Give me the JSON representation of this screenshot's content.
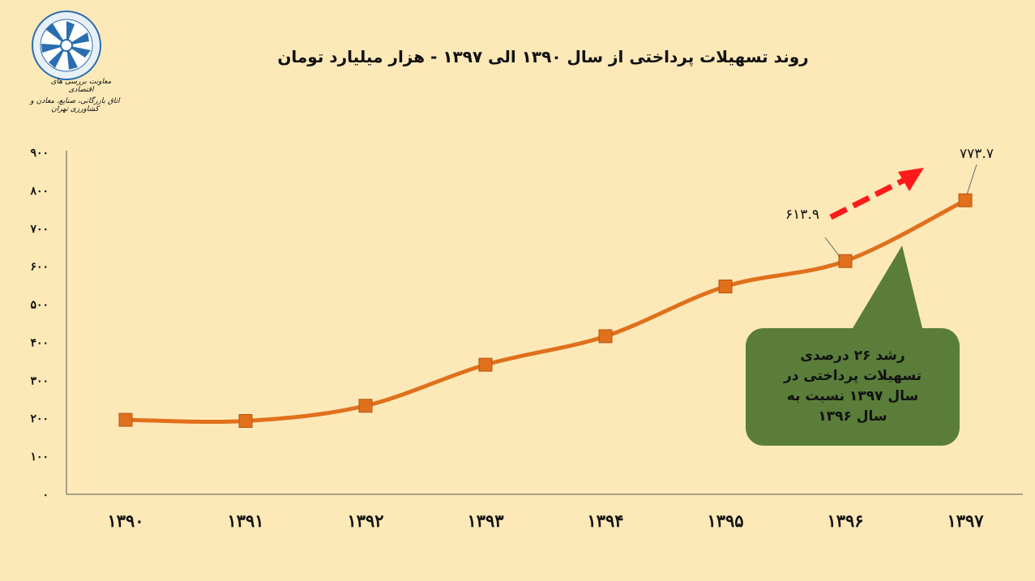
{
  "logo": {
    "name": "org-logo-icon",
    "line1": "معاونت بررسی های اقتصادی",
    "line2": "اتاق بازرگانی، صنایع، معادن و کشاورزی تهران"
  },
  "chart_data": {
    "type": "line",
    "title": "روند تسهیلات پرداختی از سال ۱۳۹۰ الی ۱۳۹۷ - هزار میلیارد تومان",
    "categories": [
      "۱۳۹۰",
      "۱۳۹۱",
      "۱۳۹۲",
      "۱۳۹۳",
      "۱۳۹۴",
      "۱۳۹۵",
      "۱۳۹۶",
      "۱۳۹۷"
    ],
    "series": [
      {
        "values": [
          196,
          193,
          233,
          341,
          416,
          547,
          613.9,
          773.7
        ]
      }
    ],
    "data_labels": [
      {
        "index": 6,
        "text": "۶۱۳.۹"
      },
      {
        "index": 7,
        "text": "۷۷۳.۷"
      }
    ],
    "yticks": [
      "۰",
      "۱۰۰",
      "۲۰۰",
      "۳۰۰",
      "۴۰۰",
      "۵۰۰",
      "۶۰۰",
      "۷۰۰",
      "۸۰۰",
      "۹۰۰"
    ],
    "ylim": [
      0,
      900
    ],
    "line_color": "#e0701c",
    "marker_color": "#e0701c",
    "arrow_color": "#ff1a1a",
    "callout_color": "#5a7e3a",
    "grid": false
  },
  "callout": {
    "lines": [
      "رشد ۲۶ درصدی",
      "تسهیلات پرداختی در",
      "سال ۱۳۹۷ نسبت به",
      "سال ۱۳۹۶"
    ]
  }
}
